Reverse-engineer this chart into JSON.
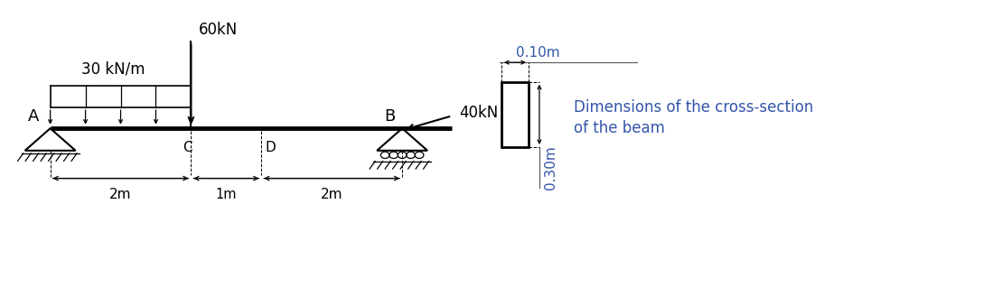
{
  "bg_color": "#ffffff",
  "beam_color": "#000000",
  "text_color": "#000000",
  "cs_text_color": "#3355aa",
  "dim_line_color": "#555555",
  "dist_load_label": "30 kN/m",
  "point_load_60_label": "60kN",
  "point_load_40_label": "40kN",
  "label_A": "A",
  "label_B": "B",
  "label_C": "C",
  "label_D": "D",
  "dim_2m_1": "2m",
  "dim_1m": "1m",
  "dim_2m_2": "2m",
  "cross_width_label": "0.10m",
  "cross_height_label": "0.30m",
  "cross_section_text_line1": "Dimensions of the cross-section",
  "cross_section_text_line2": "of the beam",
  "font_size_large": 12,
  "font_size_medium": 11,
  "font_size_small": 9.5
}
